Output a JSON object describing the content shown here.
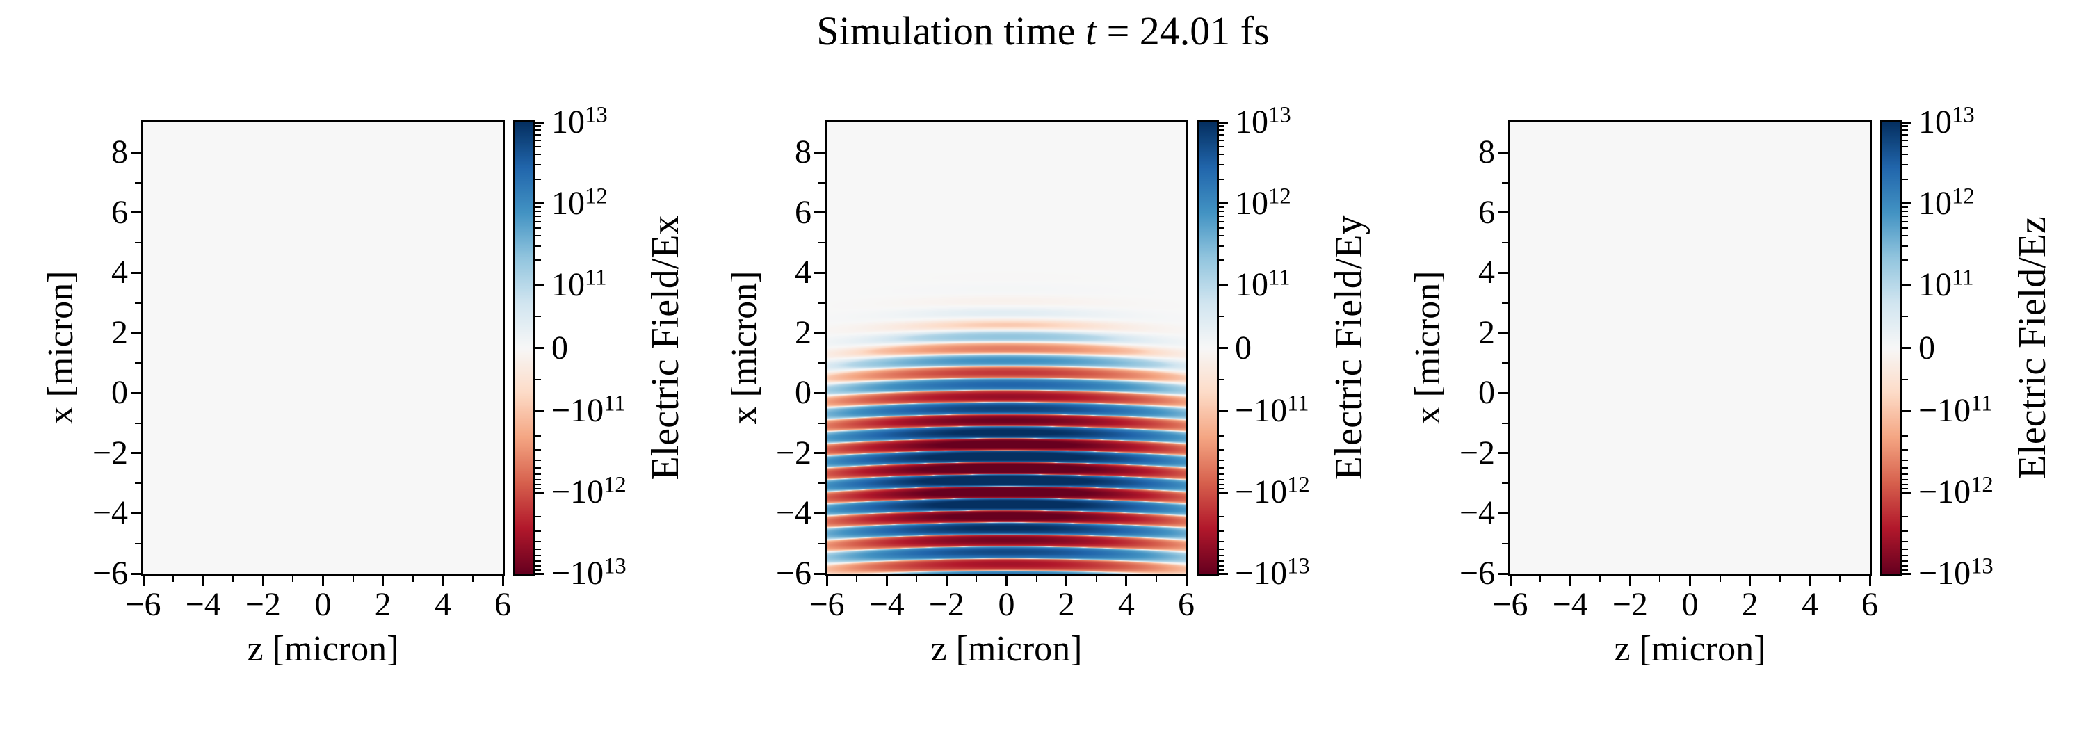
{
  "title": {
    "prefix": "Simulation time ",
    "variable": "t",
    "suffix": " = 24.01 fs"
  },
  "colors": {
    "background": "#ffffff",
    "text": "#000000",
    "spine": "#000000",
    "zero_field": "#f7f7f7",
    "rdbu_anchors": [
      "#67001f",
      "#b2182b",
      "#d6604d",
      "#f4a582",
      "#fddbc7",
      "#f7f7f7",
      "#d1e5f0",
      "#92c5de",
      "#4393c3",
      "#2166ac",
      "#053061"
    ]
  },
  "chart_data": {
    "type": "heatmap",
    "suptitle": "Simulation time t = 24.01 fs",
    "time_fs": 24.01,
    "xlabel": "z [micron]",
    "ylabel": "x [micron]",
    "xlim": [
      -6,
      6
    ],
    "ylim": [
      -6,
      9
    ],
    "xticks": [
      -6,
      -4,
      -2,
      0,
      2,
      4,
      6
    ],
    "xtick_labels": [
      "−6",
      "−4",
      "−2",
      "0",
      "2",
      "4",
      "6"
    ],
    "xminorticks": [
      -5,
      -3,
      -1,
      1,
      3,
      5
    ],
    "yticks": [
      -6,
      -4,
      -2,
      0,
      2,
      4,
      6,
      8
    ],
    "ytick_labels": [
      "−6",
      "−4",
      "−2",
      "0",
      "2",
      "4",
      "6",
      "8"
    ],
    "yminorticks": [
      -5,
      -3,
      -1,
      1,
      3,
      5,
      7
    ],
    "colorscale": {
      "type": "symlog",
      "cmap": "RdBu",
      "vmin": -10000000000000.0,
      "vmax": 10000000000000.0,
      "linthresh": 100000000000.0,
      "lin_frac": 0.14,
      "decade_frac": 0.18,
      "tick_fracs_from_top": [
        0,
        0.18,
        0.36,
        0.5,
        0.64,
        0.82,
        1
      ],
      "tick_labels": [
        "10^13",
        "10^12",
        "10^11",
        "0",
        "−10^11",
        "−10^12",
        "−10^13"
      ],
      "minor_tick_values": [
        50000000000.0,
        200000000000.0,
        300000000000.0,
        400000000000.0,
        500000000000.0,
        600000000000.0,
        700000000000.0,
        800000000000.0,
        900000000000.0,
        2000000000000.0,
        3000000000000.0,
        4000000000000.0,
        5000000000000.0,
        6000000000000.0,
        7000000000000.0,
        8000000000000.0,
        9000000000000.0
      ]
    },
    "panels": [
      {
        "name": "Ex",
        "colorbar_label": "Electric Field/Ex",
        "field": {
          "kind": "uniform",
          "value": 0
        }
      },
      {
        "name": "Ey",
        "colorbar_label": "Electric Field/Ey",
        "field": {
          "kind": "laser_pulse",
          "amplitude": 20000000000000.0,
          "wavelength_um": 0.8,
          "blue_crest_x_um": 0.3,
          "wavefront_curvature_um_per_um2": 0.005,
          "envelope_x_center_um": -2.8,
          "envelope_x_efold_um": 2.2,
          "envelope_z_efold_um": 3.4
        }
      },
      {
        "name": "Ez",
        "colorbar_label": "Electric Field/Ez",
        "field": {
          "kind": "uniform",
          "value": 0
        }
      }
    ]
  }
}
